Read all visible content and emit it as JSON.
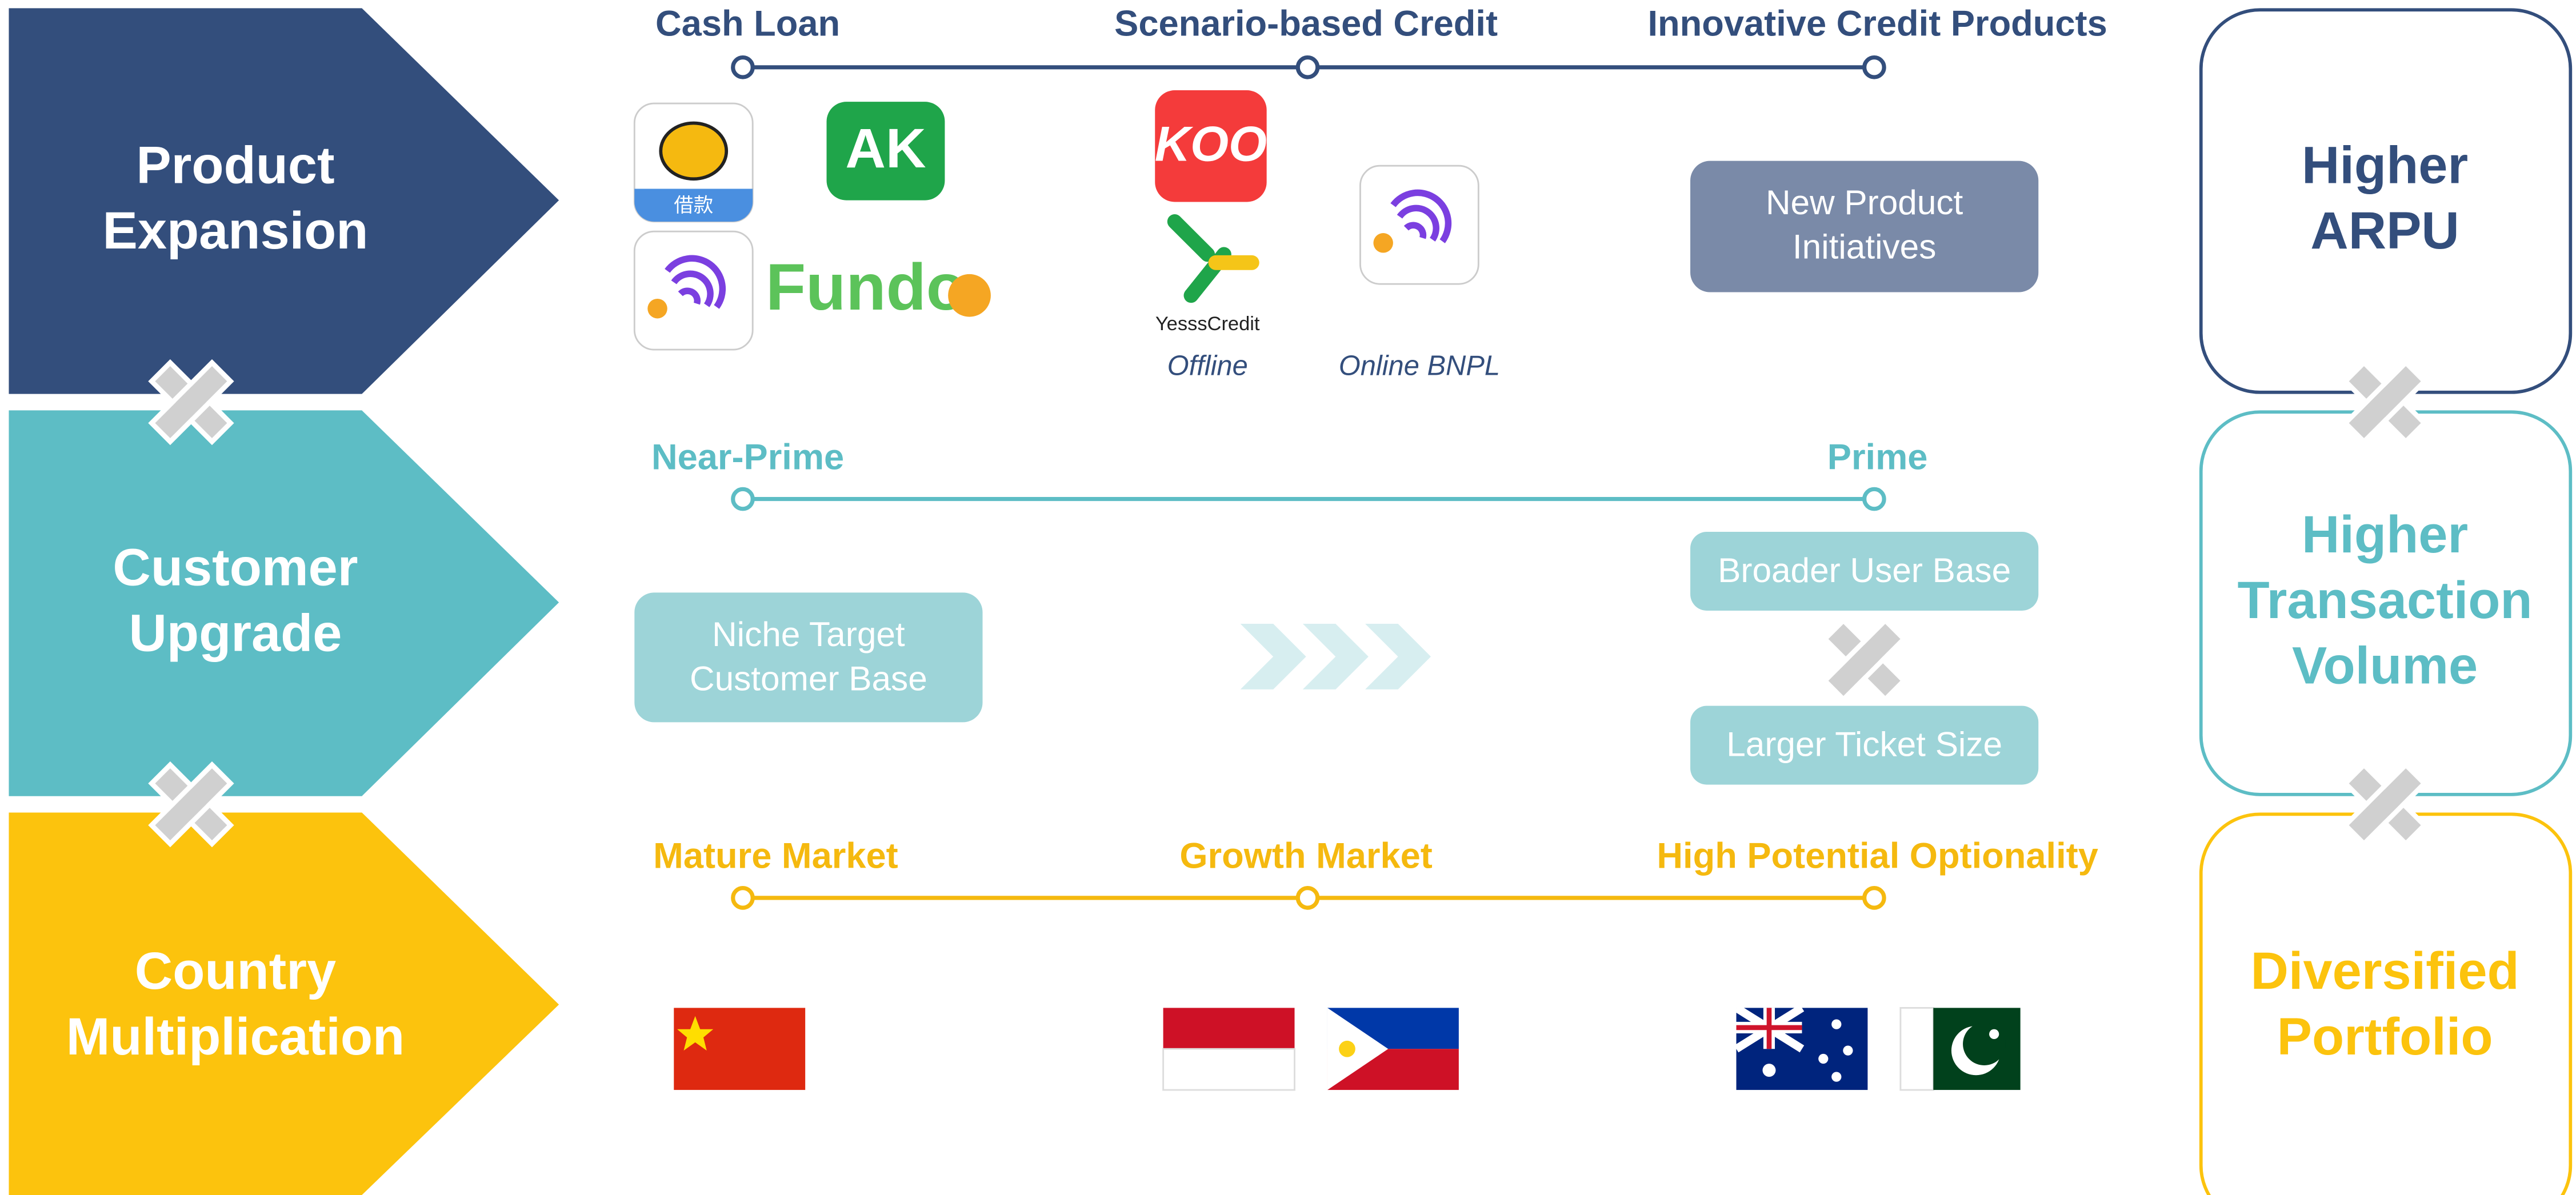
{
  "rows": [
    {
      "label": [
        "Product",
        "Expansion"
      ],
      "result": [
        "Higher",
        "ARPU"
      ]
    },
    {
      "label": [
        "Customer",
        "Upgrade"
      ],
      "result": [
        "Higher",
        "Transaction",
        "Volume"
      ]
    },
    {
      "label": [
        "Country",
        "Multiplication"
      ],
      "result": [
        "Diversified",
        "Portfolio"
      ]
    }
  ],
  "product": {
    "stages": [
      "Cash Loan",
      "Scenario-based Credit",
      "Innovative Credit Products"
    ],
    "icon_text": "借款",
    "fundo": "Fundo",
    "koo": "KOO",
    "yesss": "YesssCredit",
    "offline": "Offline",
    "online": "Online BNPL",
    "new_product": [
      "New Product",
      "Initiatives"
    ]
  },
  "customer": {
    "stages": [
      "Near-Prime",
      "Prime"
    ],
    "niche": [
      "Niche Target",
      "Customer Base"
    ],
    "broader": "Broader User Base",
    "larger": "Larger Ticket Size"
  },
  "country": {
    "stages": [
      "Mature Market",
      "Growth Market",
      "High Potential Optionality"
    ]
  }
}
